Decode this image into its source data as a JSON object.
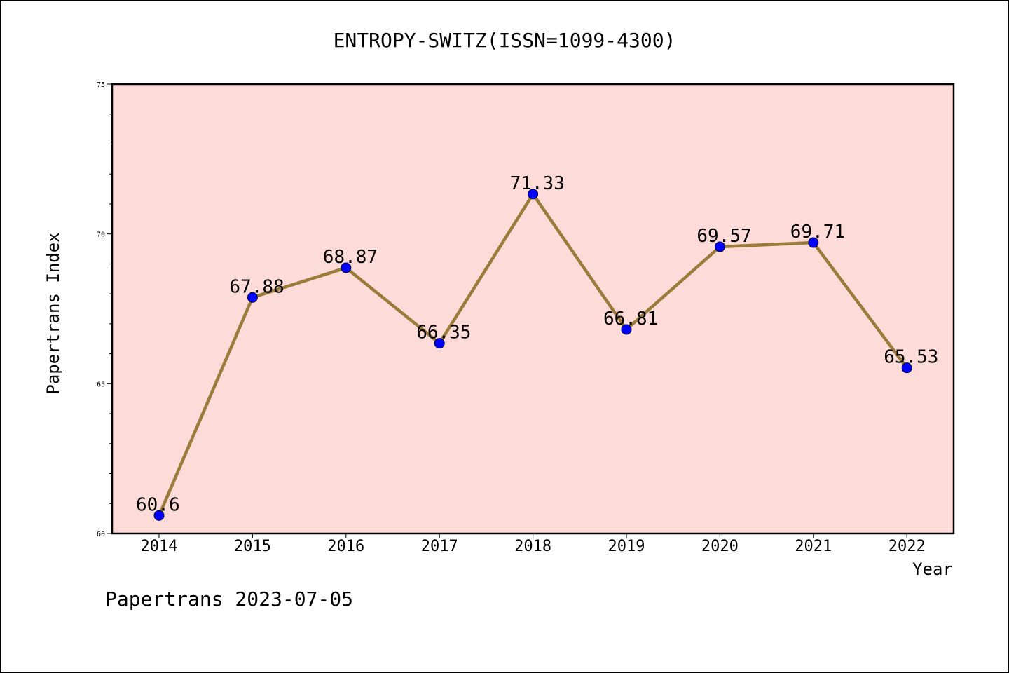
{
  "chart_data": {
    "type": "line",
    "title": "ENTROPY-SWITZ(ISSN=1099-4300)",
    "xlabel": "Year",
    "ylabel": "Papertrans Index",
    "categories": [
      "2014",
      "2015",
      "2016",
      "2017",
      "2018",
      "2019",
      "2020",
      "2021",
      "2022"
    ],
    "series": [
      {
        "values": [
          60.6,
          67.88,
          68.87,
          66.35,
          71.33,
          66.81,
          69.57,
          69.71,
          65.53
        ]
      }
    ],
    "data_labels": [
      "60.6",
      "67.88",
      "68.87",
      "66.35",
      "71.33",
      "66.81",
      "69.57",
      "69.71",
      "65.53"
    ],
    "ylim": [
      60,
      75
    ],
    "y_major_ticks": [
      "60",
      "65",
      "70",
      "75"
    ],
    "y_minor_step": 1,
    "grid": false,
    "legend": "none",
    "colors": {
      "plot_background": "#fddbd8",
      "line": "#9b7b3a",
      "marker": "#0000ff",
      "axes": "#000000"
    }
  },
  "footer": "Papertrans 2023-07-05"
}
